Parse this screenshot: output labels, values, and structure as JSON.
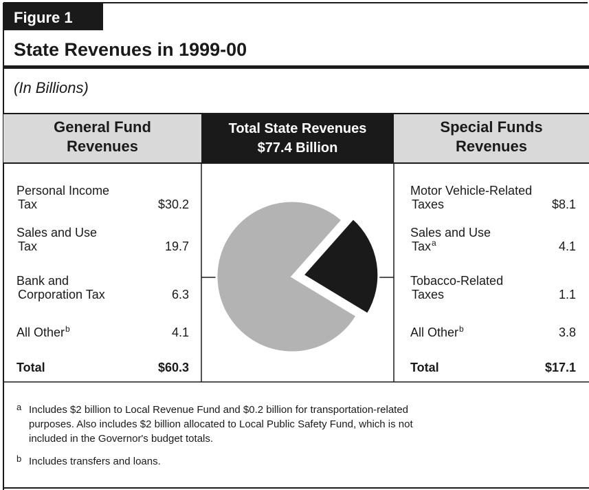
{
  "figure_label": "Figure 1",
  "title": "State Revenues in 1999-00",
  "subtitle": "(In Billions)",
  "left": {
    "header": [
      "General Fund",
      "Revenues"
    ],
    "rows": [
      {
        "label": [
          "Personal Income",
          "Tax"
        ],
        "value": 30.2,
        "value_label": "$30.2"
      },
      {
        "label": [
          "Sales and Use",
          "Tax"
        ],
        "value": 19.7
      },
      {
        "label": [
          "Bank and",
          "Corporation Tax"
        ],
        "value": 6.3
      },
      {
        "label": [
          "All Other"
        ],
        "note": "b",
        "value": 4.1
      }
    ],
    "total": {
      "label": "Total",
      "value": 60.3,
      "value_label": "$60.3"
    }
  },
  "center": {
    "header": [
      "Total State Revenues",
      "$77.4 Billion"
    ]
  },
  "right": {
    "header": [
      "Special Funds",
      "Revenues"
    ],
    "rows": [
      {
        "label": [
          "Motor Vehicle-Related",
          "Taxes"
        ],
        "value": 8.1,
        "value_label": "$8.1"
      },
      {
        "label": [
          "Sales and Use",
          "Tax"
        ],
        "note": "a",
        "value": 4.1
      },
      {
        "label": [
          "Tobacco-Related",
          "Taxes"
        ],
        "value": 1.1
      },
      {
        "label": [
          "All Other"
        ],
        "note": "b",
        "value": 3.8
      }
    ],
    "total": {
      "label": "Total",
      "value": 17.1,
      "value_label": "$17.1"
    }
  },
  "pie_colors": [
    "#b3b3b3",
    "#1a1a1a"
  ],
  "footnotes": [
    {
      "mark": "a",
      "lines": [
        "Includes $2 billion to Local Revenue Fund and $0.2 billion for transportation-related",
        "purposes. Also includes $2 billion allocated to Local Public Safety Fund, which is not",
        "included in the Governor's budget totals."
      ]
    },
    {
      "mark": "b",
      "lines": [
        "Includes transfers and loans."
      ]
    }
  ]
}
